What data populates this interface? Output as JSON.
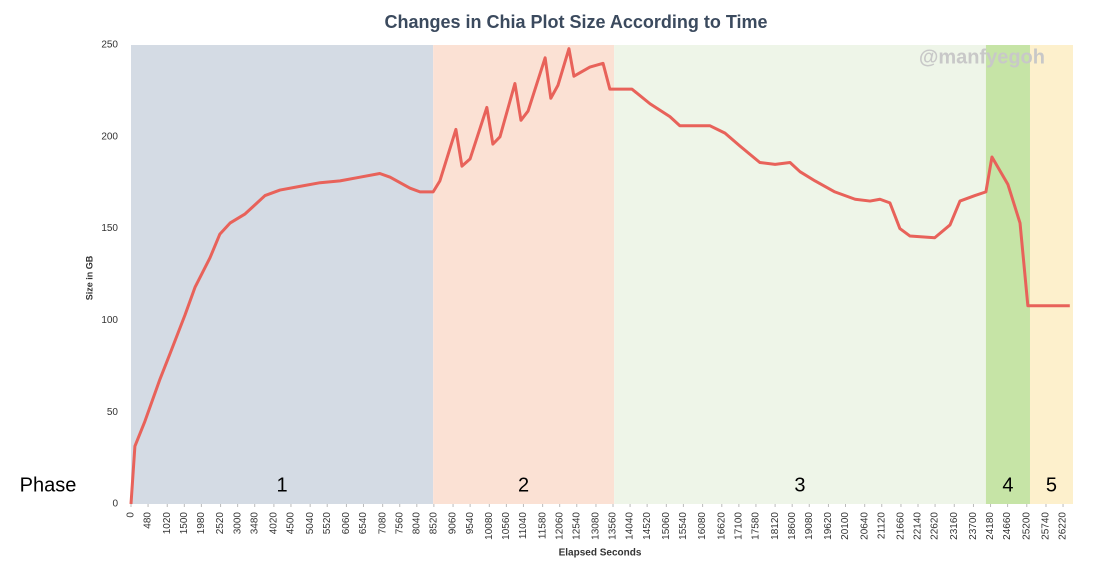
{
  "chart_data": {
    "type": "line",
    "title": "Changes in Chia Plot Size According to Time",
    "watermark": "@manfyegoh",
    "x_label": "Elapsed Seconds",
    "y_label": "Size in GB",
    "phase_label": "Phase",
    "x": [
      0,
      110,
      390,
      815,
      1100,
      1520,
      1800,
      2220,
      2500,
      2785,
      3210,
      3490,
      3770,
      4190,
      4750,
      5320,
      5880,
      6440,
      7000,
      7290,
      7850,
      8130,
      8500,
      8690,
      9140,
      9310,
      9540,
      10010,
      10180,
      10380,
      10800,
      10970,
      11170,
      11650,
      11810,
      12010,
      12320,
      12460,
      12910,
      13280,
      13470,
      13760,
      14090,
      14600,
      15160,
      15440,
      16010,
      16290,
      16710,
      17130,
      17690,
      18120,
      18540,
      18820,
      19240,
      19800,
      20370,
      20790,
      21070,
      21350,
      21630,
      21910,
      22610,
      23040,
      23320,
      23740,
      24050,
      24220,
      24670,
      25010,
      25230,
      26410
    ],
    "series": [
      {
        "color": "#e8625a",
        "values": [
          0,
          31.5,
          45,
          68,
          82,
          103,
          118,
          134,
          147,
          153,
          158,
          163,
          168,
          171,
          173,
          175,
          176,
          178,
          180,
          178,
          172,
          170,
          170,
          176,
          204,
          184,
          188,
          216,
          196,
          200,
          229,
          209,
          214,
          243,
          221,
          228,
          248,
          233,
          238,
          240,
          226,
          226,
          226,
          218,
          211,
          206,
          206,
          206,
          202,
          195,
          186,
          185,
          186,
          181,
          176,
          170,
          166,
          165,
          166,
          164,
          150,
          146,
          145,
          152,
          165,
          168,
          170,
          189,
          174,
          153,
          108,
          108
        ]
      }
    ],
    "phases": [
      {
        "label": "1",
        "start": 0,
        "end": 8500,
        "color": "#d4dbe4"
      },
      {
        "label": "2",
        "start": 8500,
        "end": 13590,
        "color": "#fbe1d4"
      },
      {
        "label": "3",
        "start": 13590,
        "end": 24050,
        "color": "#eef5e8"
      },
      {
        "label": "4",
        "start": 24050,
        "end": 25290,
        "color": "#c6e4a6"
      },
      {
        "label": "5",
        "start": 25290,
        "end": 26500,
        "color": "#fdf0cc"
      }
    ],
    "xlim": [
      0,
      26500
    ],
    "xticks": [
      0,
      480,
      1020,
      1500,
      1980,
      2520,
      3000,
      3480,
      4020,
      4500,
      5040,
      5520,
      6060,
      6540,
      7080,
      7560,
      8040,
      8520,
      9060,
      9540,
      10080,
      10560,
      11040,
      11580,
      12060,
      12540,
      13080,
      13560,
      14040,
      14520,
      15060,
      15540,
      16080,
      16620,
      17100,
      17580,
      18120,
      18600,
      19080,
      19620,
      20100,
      20640,
      21120,
      21660,
      22140,
      22620,
      23160,
      23700,
      24180,
      24660,
      25200,
      25740,
      26220
    ],
    "ylim": [
      0,
      250
    ],
    "yticks": [
      0,
      50,
      100,
      150,
      200,
      250
    ]
  }
}
